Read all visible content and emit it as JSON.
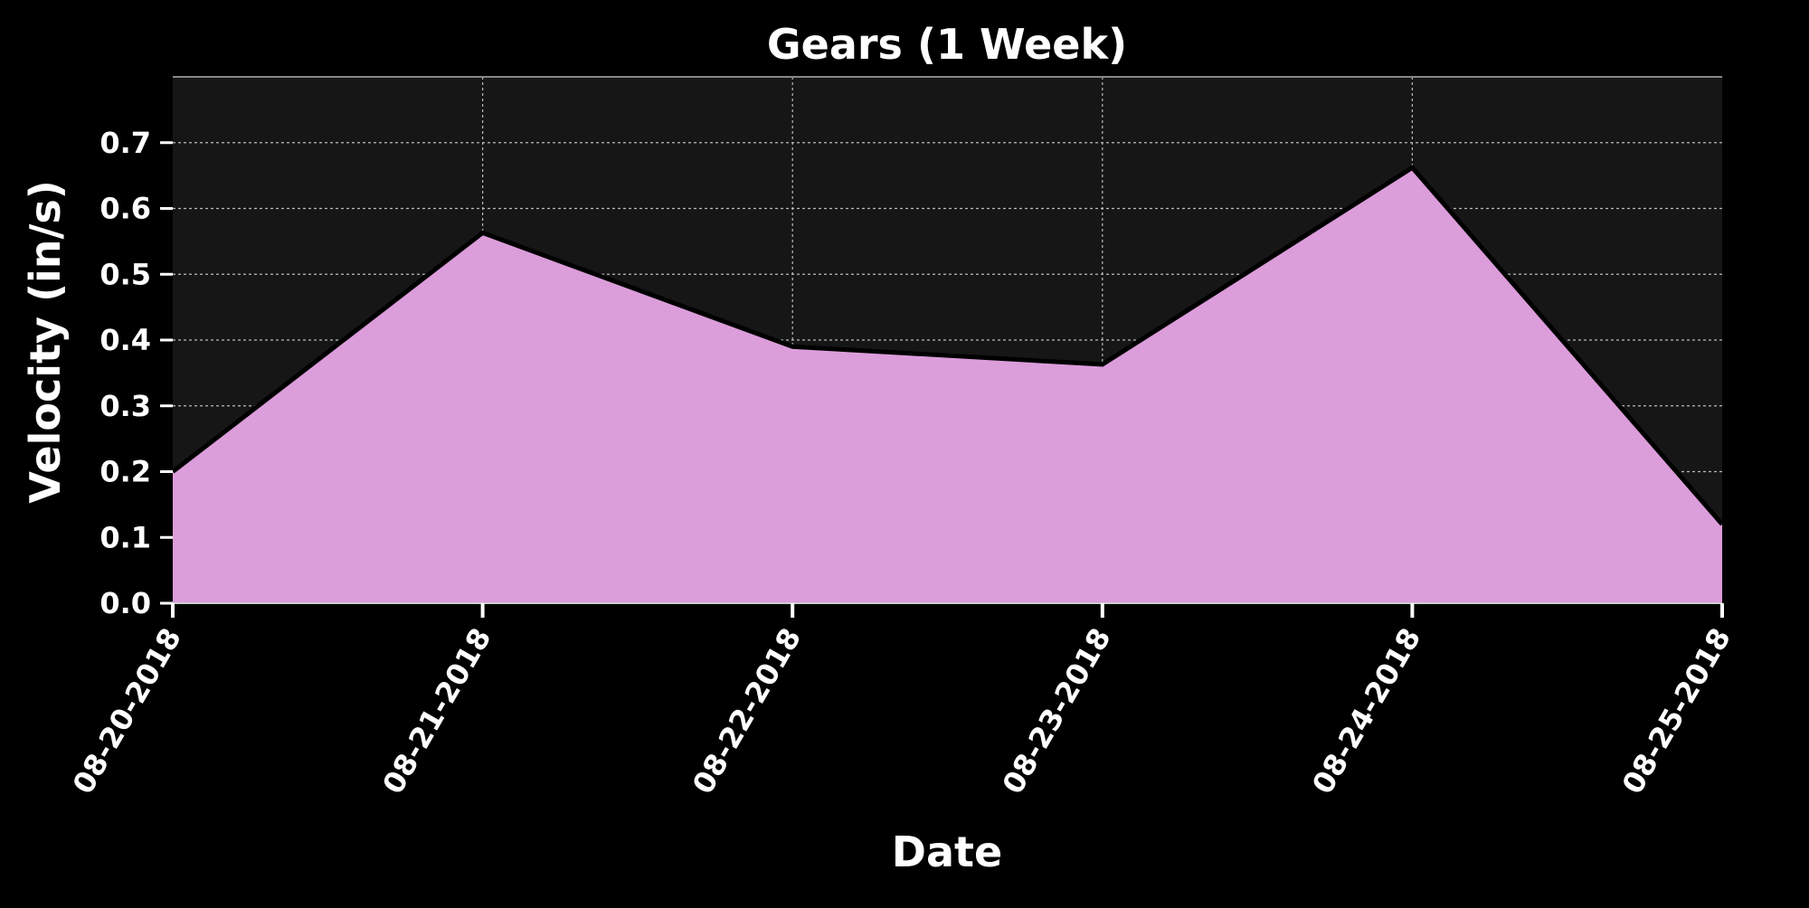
{
  "chart_data": {
    "type": "area",
    "title": "Gears (1 Week)",
    "xlabel": "Date",
    "ylabel": "Velocity (in/s)",
    "x": [
      "08-20-2018",
      "08-21-2018",
      "08-22-2018",
      "08-23-2018",
      "08-24-2018",
      "08-25-2018"
    ],
    "series": [
      {
        "values": [
          0.2,
          0.563,
          0.39,
          0.363,
          0.662,
          0.12
        ]
      }
    ],
    "ylim": [
      0,
      0.8
    ],
    "yticks": [
      "0.0",
      "0.1",
      "0.2",
      "0.3",
      "0.4",
      "0.5",
      "0.6",
      "0.7"
    ],
    "grid": true,
    "colors": {
      "background": "#000000",
      "plot_background": "#161616",
      "fill": "#dc9ddb",
      "line": "#000000",
      "grid": "#bbbbbb",
      "text": "#ffffff"
    }
  }
}
